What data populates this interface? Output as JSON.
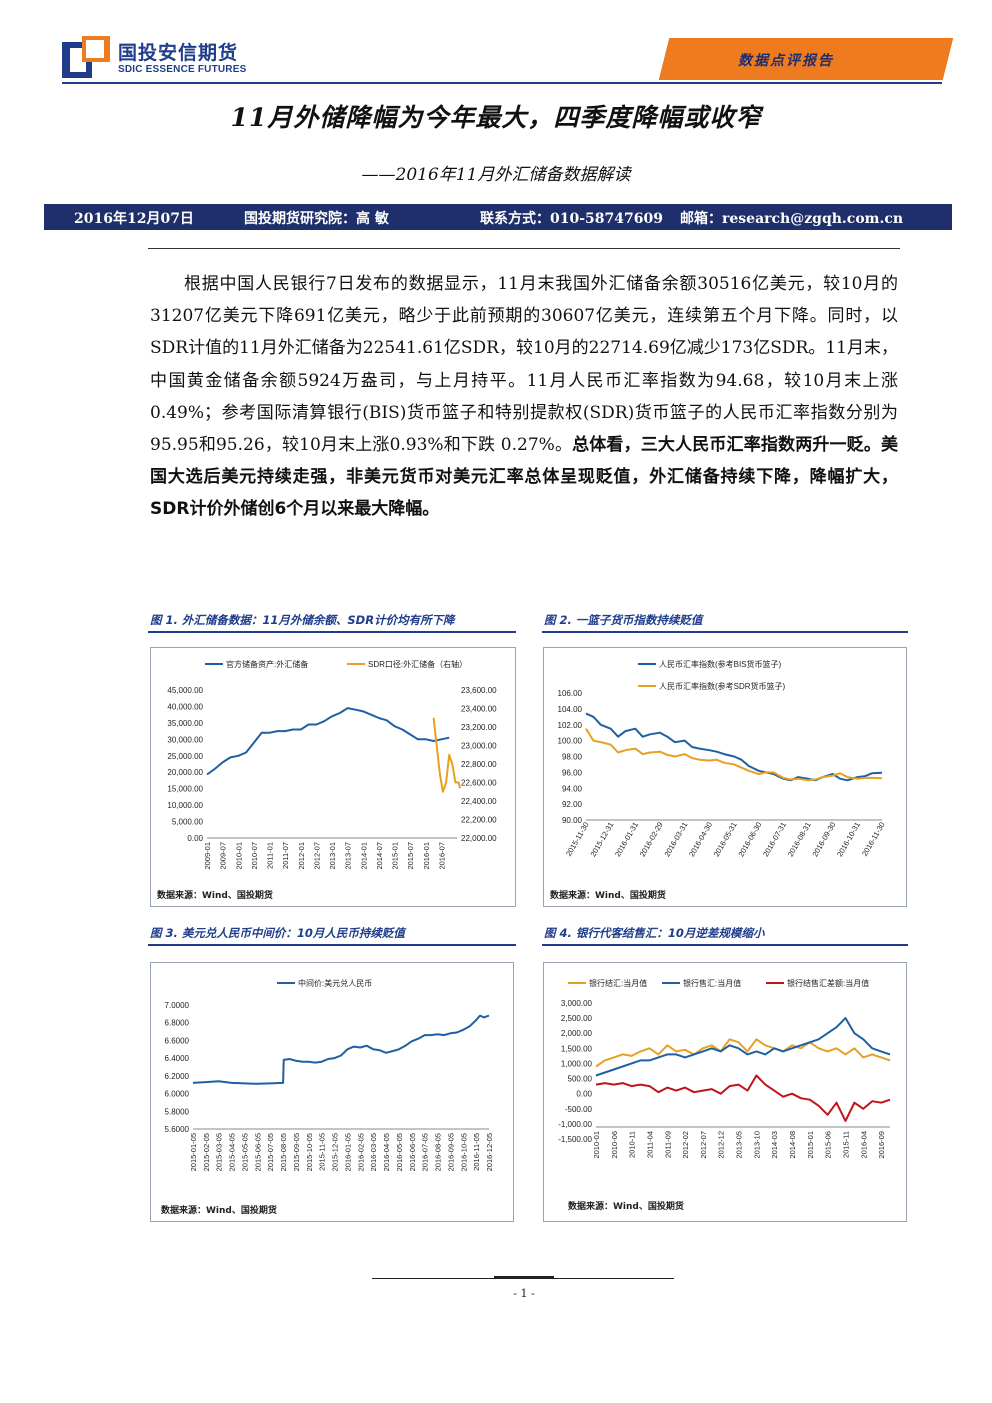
{
  "header": {
    "logo_cn": "国投安信期货",
    "logo_en": "SDIC ESSENCE FUTURES",
    "report_type": "数据点评报告"
  },
  "title": "11月外储降幅为今年最大，四季度降幅或收窄",
  "subtitle": "——2016年11月外汇储备数据解读",
  "info": {
    "date": "2016年12月07日",
    "author": "国投期货研究院：高  敏",
    "contact": "联系方式：010-58747609",
    "email": "邮箱：research@zgqh.com.cn"
  },
  "body": {
    "normal": "根据中国人民银行7日发布的数据显示，11月末我国外汇储备余额30516亿美元，较10月的31207亿美元下降691亿美元，略少于此前预期的30607亿美元，连续第五个月下降。同时，以SDR计值的11月外汇储备为22541.61亿SDR，较10月的22714.69亿减少173亿SDR。11月末，中国黄金储备余额5924万盎司，与上月持平。11月人民币汇率指数为94.68，较10月末上涨0.49%；参考国际清算银行(BIS)货币篮子和特别提款权(SDR)货币篮子的人民币汇率指数分别为95.95和95.26，较10月末上涨0.93%和下跌 0.27%。",
    "bold": "总体看，三大人民币汇率指数两升一贬。美国大选后美元持续走强，非美元货币对美元汇率总体呈现贬值，外汇储备持续下降，降幅扩大，SDR计价外储创6个月以来最大降幅。"
  },
  "colors": {
    "navy": "#1f3d8a",
    "orange": "#e8a020",
    "blue": "#1f5fa3",
    "red": "#c0141c",
    "badge": "#ee7b1f"
  },
  "figures": [
    {
      "caption": "图 1. 外汇储备数据：11月外储余额、SDR计价均有所下降",
      "source": "数据来源：Wind、国投期货",
      "chart_data": {
        "type": "line",
        "x": [
          "2009-01",
          "2009-07",
          "2010-01",
          "2010-07",
          "2011-01",
          "2011-07",
          "2012-01",
          "2012-07",
          "2013-01",
          "2013-07",
          "2014-01",
          "2014-07",
          "2015-01",
          "2015-07",
          "2016-01",
          "2016-07"
        ],
        "series": [
          {
            "name": "官方储备资产:外汇储备",
            "axis": "left",
            "color": "#1f5fa3",
            "x": [
              0,
              0.5,
              1,
              1.5,
              2,
              2.5,
              3,
              3.5,
              4,
              4.5,
              5,
              5.5,
              6,
              6.5,
              7,
              7.5,
              8,
              8.5,
              9,
              9.5,
              10,
              10.5,
              11,
              11.5,
              12,
              12.5,
              13,
              13.5,
              14,
              14.5,
              15,
              15.5
            ],
            "values": [
              19300,
              21000,
              23000,
              24500,
              25000,
              26000,
              29000,
              32000,
              32000,
              32500,
              32500,
              33000,
              33000,
              34500,
              34500,
              35500,
              37000,
              38000,
              39500,
              39000,
              38500,
              37500,
              36500,
              35800,
              34000,
              33000,
              31500,
              30000,
              30000,
              29500,
              30000,
              30500
            ]
          },
          {
            "name": "SDR口径:外汇储备（右轴）",
            "axis": "right",
            "color": "#e8a020",
            "x": [
              14.5,
              14.7,
              14.9,
              15.1,
              15.3,
              15.5,
              15.7,
              15.9,
              16.1,
              16.2
            ],
            "values": [
              23300,
              23000,
              22700,
              22500,
              22600,
              22900,
              22800,
              22600,
              22600,
              22540
            ]
          }
        ],
        "y_left": {
          "min": 0,
          "max": 45000,
          "ticks": [
            "0.00",
            "5,000.00",
            "10,000.00",
            "15,000.00",
            "20,000.00",
            "25,000.00",
            "30,000.00",
            "35,000.00",
            "40,000.00",
            "45,000.00"
          ]
        },
        "y_right": {
          "min": 22000,
          "max": 23600,
          "ticks": [
            "22,000.00",
            "22,200.00",
            "22,400.00",
            "22,600.00",
            "22,800.00",
            "23,000.00",
            "23,200.00",
            "23,400.00",
            "23,600.00"
          ]
        }
      }
    },
    {
      "caption": "图 2. 一篮子货币指数持续贬值",
      "source": "数据来源：Wind、国投期货",
      "chart_data": {
        "type": "line",
        "x": [
          "2015-11-30",
          "2015-12-31",
          "2016-01-31",
          "2016-02-29",
          "2016-03-31",
          "2016-04-30",
          "2016-05-31",
          "2016-06-30",
          "2016-07-31",
          "2016-08-31",
          "2016-09-30",
          "2016-10-31",
          "2016-11-30"
        ],
        "series": [
          {
            "name": "人民币汇率指数(参考BIS货币篮子)",
            "color": "#1f5fa3",
            "x": [
              0,
              0.3,
              0.6,
              1,
              1.3,
              1.6,
              2,
              2.3,
              2.6,
              3,
              3.3,
              3.6,
              4,
              4.3,
              4.6,
              5,
              5.3,
              5.6,
              6,
              6.3,
              6.6,
              7,
              7.3,
              7.6,
              8,
              8.3,
              8.6,
              9,
              9.3,
              9.6,
              10,
              10.3,
              10.6,
              11,
              11.3,
              11.6,
              12
            ],
            "values": [
              103.4,
              103,
              102,
              101.5,
              100.5,
              101.2,
              101.5,
              100.5,
              100.8,
              101,
              100.5,
              99.8,
              100,
              99.2,
              99,
              98.8,
              98.6,
              98.3,
              98,
              97.6,
              96.8,
              96.2,
              96,
              95.8,
              95.2,
              95,
              95.4,
              95.2,
              95,
              95.4,
              95.8,
              95.2,
              95,
              95.4,
              95.5,
              95.9,
              95.95
            ]
          },
          {
            "name": "人民币汇率指数(参考SDR货币篮子)",
            "color": "#e8a020",
            "x": [
              0,
              0.3,
              0.6,
              1,
              1.3,
              1.6,
              2,
              2.3,
              2.6,
              3,
              3.3,
              3.6,
              4,
              4.3,
              4.6,
              5,
              5.3,
              5.6,
              6,
              6.3,
              6.6,
              7,
              7.3,
              7.6,
              8,
              8.3,
              8.6,
              9,
              9.3,
              9.6,
              10,
              10.3,
              10.6,
              11,
              11.3,
              11.6,
              12
            ],
            "values": [
              101.5,
              100,
              99.8,
              99.5,
              98.5,
              98.8,
              99,
              98.3,
              98.5,
              98.6,
              98.2,
              98,
              98.3,
              97.8,
              97.6,
              97.5,
              97.6,
              97.2,
              97,
              96.6,
              96.2,
              95.8,
              96,
              96,
              95.3,
              95.1,
              95.2,
              95,
              95.1,
              95.4,
              95.6,
              95.9,
              95.4,
              95.2,
              95.3,
              95.3,
              95.26
            ]
          }
        ],
        "y": {
          "min": 90,
          "max": 106,
          "ticks": [
            "90.00",
            "92.00",
            "94.00",
            "96.00",
            "98.00",
            "100.00",
            "102.00",
            "104.00",
            "106.00"
          ]
        }
      }
    },
    {
      "caption": "图 3. 美元兑人民币中间价：10月人民币持续贬值",
      "source": "数据来源：Wind、国投期货",
      "chart_data": {
        "type": "line",
        "x": [
          "2015-01-05",
          "2015-02-05",
          "2015-03-05",
          "2015-04-05",
          "2015-05-05",
          "2015-06-05",
          "2015-07-05",
          "2015-08-05",
          "2015-09-05",
          "2015-10-05",
          "2015-11-05",
          "2015-12-05",
          "2016-01-05",
          "2016-02-05",
          "2016-03-05",
          "2016-04-05",
          "2016-05-05",
          "2016-06-05",
          "2016-07-05",
          "2016-08-05",
          "2016-09-05",
          "2016-10-05",
          "2016-11-05",
          "2016-12-05"
        ],
        "series": [
          {
            "name": "中间价:美元兑人民币",
            "color": "#1f5fa3",
            "x": [
              0,
              1,
              2,
              3,
              4,
              5,
              6,
              7,
              7.05,
              7.5,
              8,
              8.5,
              9,
              9.5,
              10,
              10.5,
              11,
              11.5,
              12,
              12.5,
              13,
              13.5,
              14,
              14.5,
              15,
              15.5,
              16,
              16.5,
              17,
              17.5,
              18,
              18.5,
              19,
              19.5,
              20,
              20.5,
              21,
              21.5,
              22,
              22.3,
              22.6,
              23
            ],
            "values": [
              6.12,
              6.13,
              6.14,
              6.12,
              6.115,
              6.11,
              6.115,
              6.12,
              6.38,
              6.39,
              6.37,
              6.36,
              6.36,
              6.35,
              6.36,
              6.39,
              6.4,
              6.43,
              6.5,
              6.53,
              6.52,
              6.54,
              6.5,
              6.49,
              6.46,
              6.48,
              6.5,
              6.54,
              6.59,
              6.62,
              6.66,
              6.66,
              6.67,
              6.66,
              6.68,
              6.69,
              6.72,
              6.76,
              6.83,
              6.88,
              6.86,
              6.88
            ]
          }
        ],
        "y": {
          "min": 5.6,
          "max": 7.0,
          "ticks": [
            "5.6000",
            "5.8000",
            "6.0000",
            "6.2000",
            "6.4000",
            "6.6000",
            "6.8000",
            "7.0000"
          ]
        }
      }
    },
    {
      "caption": "图 4. 银行代客结售汇：10月逆差规模缩小",
      "source": "数据来源：Wind、国投期货",
      "chart_data": {
        "type": "line",
        "x": [
          "2010-01",
          "2010-06",
          "2010-11",
          "2011-04",
          "2011-09",
          "2012-02",
          "2012-07",
          "2012-12",
          "2013-05",
          "2013-10",
          "2014-03",
          "2014-08",
          "2015-01",
          "2015-06",
          "2015-11",
          "2016-04",
          "2016-09"
        ],
        "series": [
          {
            "name": "银行结汇:当月值",
            "color": "#e8a020",
            "x": [
              0,
              0.5,
              1,
              1.5,
              2,
              2.5,
              3,
              3.5,
              4,
              4.5,
              5,
              5.5,
              6,
              6.5,
              7,
              7.5,
              8,
              8.5,
              9,
              9.5,
              10,
              10.5,
              11,
              11.5,
              12,
              12.5,
              13,
              13.5,
              14,
              14.5,
              15,
              15.5,
              16,
              16.5
            ],
            "values": [
              900,
              1100,
              1200,
              1300,
              1250,
              1400,
              1500,
              1300,
              1600,
              1400,
              1450,
              1300,
              1500,
              1600,
              1400,
              1800,
              1700,
              1400,
              1800,
              1600,
              1500,
              1400,
              1600,
              1500,
              1700,
              1500,
              1400,
              1500,
              1300,
              1500,
              1200,
              1300,
              1200,
              1100
            ]
          },
          {
            "name": "银行售汇:当月值",
            "color": "#1f5fa3",
            "x": [
              0,
              0.5,
              1,
              1.5,
              2,
              2.5,
              3,
              3.5,
              4,
              4.5,
              5,
              5.5,
              6,
              6.5,
              7,
              7.5,
              8,
              8.5,
              9,
              9.5,
              10,
              10.5,
              11,
              11.5,
              12,
              12.5,
              13,
              13.5,
              14,
              14.5,
              15,
              15.5,
              16,
              16.5
            ],
            "values": [
              600,
              700,
              800,
              900,
              1000,
              1100,
              1100,
              1200,
              1300,
              1300,
              1200,
              1300,
              1400,
              1500,
              1400,
              1600,
              1500,
              1300,
              1400,
              1300,
              1500,
              1400,
              1500,
              1600,
              1700,
              1800,
              2000,
              2200,
              2500,
              2000,
              1800,
              1500,
              1400,
              1300
            ]
          },
          {
            "name": "银行结售汇差额:当月值",
            "color": "#c0141c",
            "x": [
              0,
              0.5,
              1,
              1.5,
              2,
              2.5,
              3,
              3.5,
              4,
              4.5,
              5,
              5.5,
              6,
              6.5,
              7,
              7.5,
              8,
              8.5,
              9,
              9.5,
              10,
              10.5,
              11,
              11.5,
              12,
              12.5,
              13,
              13.5,
              14,
              14.5,
              15,
              15.5,
              16,
              16.5
            ],
            "values": [
              300,
              350,
              300,
              350,
              250,
              300,
              250,
              50,
              200,
              100,
              200,
              50,
              100,
              150,
              0,
              250,
              300,
              100,
              600,
              300,
              100,
              -100,
              0,
              -150,
              -200,
              -400,
              -700,
              -300,
              -900,
              -300,
              -500,
              -250,
              -300,
              -200
            ]
          }
        ],
        "y": {
          "min": -1500,
          "max": 3000,
          "ticks": [
            "-1,500.00",
            "-1,000.00",
            "-500.00",
            "0.00",
            "500.00",
            "1,000.00",
            "1,500.00",
            "2,000.00",
            "2,500.00",
            "3,000.00"
          ]
        }
      }
    }
  ],
  "footer": {
    "page": "- 1 -"
  }
}
